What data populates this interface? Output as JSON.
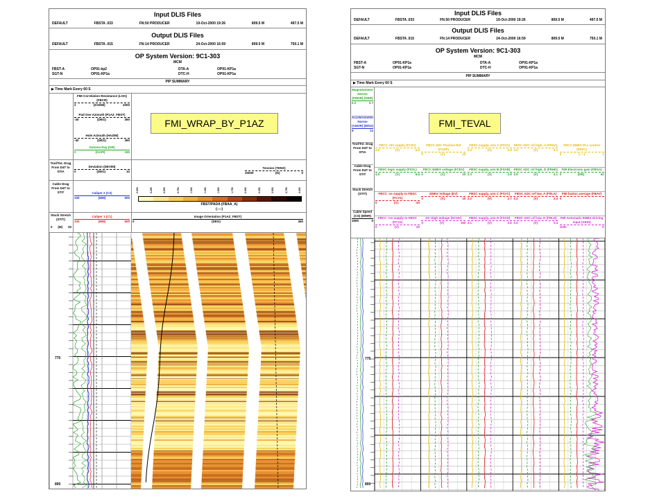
{
  "left_panel": {
    "input_title": "Input DLIS Files",
    "input_row": [
      "DEFAULT",
      "FBSTA .033",
      "FN:50 PRODUCER",
      "19-Oct-2000 19:26",
      "809.5 M",
      "497.5 M"
    ],
    "output_title": "Output DLIS Files",
    "output_row": [
      "DEFAULT",
      "FBSTA .015",
      "FN:14 PRODUCER",
      "24-Oct-2000 16:59",
      "809.5 M",
      "750.1 M"
    ],
    "op_title": "OP System Version: 9C1-303",
    "mcm": "MCM",
    "tools": {
      "col1": [
        "FBST-A",
        "SGT-N"
      ],
      "col2": [
        "OP91-kp2",
        "OP91-KP1a"
      ],
      "col3": [
        "DTA-A",
        "DTC-H"
      ],
      "col4": [
        "OP91-KP1a",
        "OP91-KP1a"
      ]
    },
    "pip_summary": "PIP SUMMARY",
    "time_mark": "Time Mark Every  60 S",
    "curve_headers": [
      {
        "name": "FMI Correlation Resistance (LOG) (FBCR)",
        "unit": "(KOHM)",
        "min": "2",
        "max": "2000",
        "color": "#000000"
      },
      {
        "name": "Pad One Azimuth (P1AZ_FBST)",
        "unit": "(DEG)",
        "min": "-40",
        "max": "360",
        "color": "#000000"
      },
      {
        "name": "Hole Azimuth (HAZIM)",
        "unit": "(DEG)",
        "min": "-40",
        "max": "360",
        "color": "#000000"
      },
      {
        "name": "Gamma Ray (GR)",
        "unit": "(GAPI)",
        "min": "0",
        "max": "150",
        "color": "#22a322"
      },
      {
        "name": "Deviation (DEVIM)",
        "unit": "(DEG)",
        "min": "0",
        "max": "10",
        "color": "#000000"
      },
      {
        "name": "Caliper 2 (C2)",
        "unit": "(MM)",
        "min": "100",
        "max": "500",
        "color": "#1e2fd8"
      },
      {
        "name": "Caliper 1 (C1)",
        "unit": "(MM)",
        "min": "100",
        "max": "500",
        "color": "#e0161e"
      }
    ],
    "side_labels": [
      "Tool/Tot. Drag From D4T to STIA",
      "Cable Drag From D4T to STIT",
      "Stuck Stretch (STIT)"
    ],
    "tension": {
      "name": "Tension (TENS)",
      "unit": "(N)",
      "min": "20000",
      "max": "0"
    },
    "palette_label": "FBST/PADA (FBAA_A)",
    "palette_sub": "(----)",
    "palette_colors": [
      "#fff9c4",
      "#fbe78a",
      "#f8cf55",
      "#f4b03a",
      "#eb8f2a",
      "#d9691e",
      "#b84615",
      "#8c2a0c",
      "#5a1506",
      "#2a0a02",
      "#0d0401"
    ],
    "palette_ticks": [
      "0.000",
      "0.250",
      "0.500",
      "0.750",
      "1.000",
      "1.250",
      "1.500",
      "1.750",
      "2.000",
      "2.250",
      "2.500",
      "2.750",
      "3.000"
    ],
    "image_orientation": {
      "name": "Image Orientation (P1AZ_FBST)",
      "unit": "(DEG)",
      "min": "0",
      "max": "360"
    },
    "depth_unit": "(M)",
    "depth_head": [
      "0",
      "20"
    ],
    "depths": [
      "775",
      "800"
    ],
    "label": "FMI_WRAP_BY_P1AZ"
  },
  "right_panel": {
    "input_title": "Input DLIS Files",
    "input_row": [
      "DEFAULT",
      "FBSTA .033",
      "FN:50 PRODUCER",
      "19-Oct-2000 19:26",
      "809.5 M",
      "497.5 M"
    ],
    "output_title": "Output DLIS Files",
    "output_row": [
      "DEFAULT",
      "FBSTA .015",
      "FN:14 PRODUCER",
      "24-Oct-2000 16:59",
      "809.5 M",
      "750.1 M"
    ],
    "op_title": "OP System Version: 9C1-303",
    "mcm": "MCM",
    "tools": {
      "col1": [
        "FBST-A",
        "SGT-N"
      ],
      "col2": [
        "OP91-KP1a",
        "OP91-KP1a"
      ],
      "col3": [
        "DTA-A",
        "DTC-H"
      ],
      "col4": [
        "OP91-KP1a",
        "OP91-KP1a"
      ]
    },
    "pip_summary": "PIP SUMMARY",
    "time_mark": "Time Mark Every  60 S",
    "left_headers": [
      {
        "name": "Magnetometer Norme (FNOR) (OER)",
        "min": "0.2",
        "max": "0.7",
        "color": "#22a322"
      },
      {
        "name": "Accelerometer Norme (ANOR) (M/S2)",
        "min": "9",
        "max": "11",
        "color": "#1e2fd8"
      },
      {
        "name": "Tool/Tot. Drag From D4T to STIA",
        "min": "",
        "max": "",
        "color": "#000000"
      },
      {
        "name": "Cable Drag From D4T to STIT",
        "min": "",
        "max": "",
        "color": "#000000"
      },
      {
        "name": "Stuck Stretch (STIT)",
        "min": "",
        "max": "",
        "color": "#000000"
      },
      {
        "name": "Cable Speed (CS) (M/HR)",
        "min": "1500",
        "max": "0",
        "color": "#000000"
      }
    ],
    "grid_rows": [
      [
        {
          "name": "FBCC +5V supply (FC5V)",
          "unit": "(V)",
          "min": "4.5",
          "max": "5.5",
          "color": "#e2b800"
        },
        {
          "name": "FBCC ADC Positive Ref (FCRP)",
          "unit": "(V)",
          "min": "0",
          "max": "10",
          "color": "#e2b800"
        },
        {
          "name": "FBSC supply, arm A (FSVA)",
          "unit": "(V)",
          "min": "2.4",
          "max": "2.9",
          "color": "#e2b800"
        },
        {
          "name": "FBSC ADC ref high, A (FRHA)",
          "unit": "(V)",
          "min": "3.9",
          "max": "4.1",
          "color": "#e2b800"
        },
        {
          "name": "FBCC EMEX PLL control (FEPC)",
          "unit": "(----)",
          "min": "0",
          "max": "1",
          "color": "#e2b800"
        }
      ],
      [
        {
          "name": "FBSC logic supply (FSVL)",
          "unit": "(V)",
          "min": "4.5",
          "max": "5.5",
          "color": "#22a322"
        },
        {
          "name": "FBCC EMEX voltage (FCEV)",
          "unit": "(V)",
          "min": "0",
          "max": "20",
          "color": "#22a322"
        },
        {
          "name": "FBSC supply, arm B (FSVB)",
          "unit": "(V)",
          "min": "2.3",
          "max": "2.8",
          "color": "#22a322"
        },
        {
          "name": "FBSC ADC ref high, D (FRHD)",
          "unit": "(V)",
          "min": "3.9",
          "max": "4.1",
          "color": "#22a322"
        },
        {
          "name": "FMI Electronic gain (FBGA)",
          "unit": "(DB)",
          "min": "0",
          "max": "52",
          "color": "#22a322"
        }
      ],
      [
        {
          "name": "FBCC -ve supply to FBSC (FCV1)",
          "unit": "(V)",
          "min": "0",
          "max": "-20",
          "color": "#e0161e"
        },
        {
          "name": "EMEX Voltage (EV)",
          "unit": "(V)",
          "min": "0",
          "max": "20",
          "color": "#e0161e"
        },
        {
          "name": "FBSC supply, arm C (FSVC)",
          "unit": "(V)",
          "min": "2.2",
          "max": "2.7",
          "color": "#e0161e"
        },
        {
          "name": "FBSC ADC ref low, A (FRLA)",
          "unit": "(V)",
          "min": "2.2",
          "max": "2.4",
          "color": "#e0161e"
        },
        {
          "name": "FMI button average (FBAV)",
          "unit": "",
          "min": "0",
          "max": "",
          "color": "#e0161e"
        }
      ],
      [
        {
          "name": "FBCC +ve supply to FBSC (FCV2)",
          "unit": "(V)",
          "min": "0",
          "max": "20",
          "color": "#d61fd6"
        },
        {
          "name": "DC High Voltage (DCHV)",
          "unit": "(V)",
          "min": "0",
          "max": "150",
          "color": "#d61fd6"
        },
        {
          "name": "FBSC supply, arm D (FSVD)",
          "unit": "(V)",
          "min": "2.1",
          "max": "2.6",
          "color": "#d61fd6"
        },
        {
          "name": "FBSC ADC ref low, D (FRLD)",
          "unit": "(V)",
          "min": "2.2",
          "max": "2.4",
          "color": "#d61fd6"
        },
        {
          "name": "FMI Automatic EMEX Driving input (AEDI)",
          "unit": "",
          "min": "1000",
          "max": "0",
          "color": "#d61fd6"
        }
      ]
    ],
    "depths": [
      "775",
      "800"
    ],
    "label": "FMI_TEVAL"
  }
}
